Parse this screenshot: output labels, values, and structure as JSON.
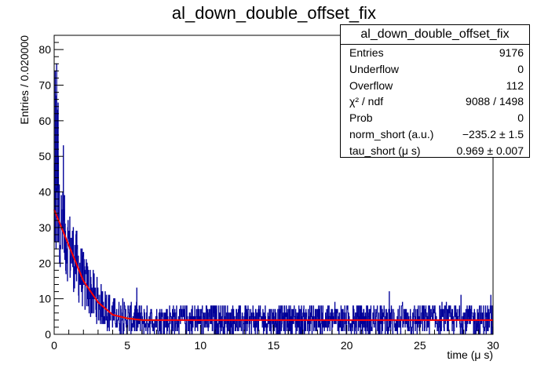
{
  "chart_data": {
    "type": "histogram",
    "title": "al_down_double_offset_fix",
    "xlabel": "time (μ s)",
    "ylabel": "Entries / 0.020000",
    "xlim": [
      0,
      30
    ],
    "ylim": [
      0,
      84
    ],
    "x_ticks": [
      "0",
      "5",
      "10",
      "15",
      "20",
      "25",
      "30"
    ],
    "y_ticks": [
      "0",
      "10",
      "20",
      "30",
      "40",
      "50",
      "60",
      "70",
      "80"
    ],
    "bin_width": 0.02,
    "fit": {
      "model": "exponential decay plus flat offset",
      "values_at_x": {
        "0": 35,
        "1": 25,
        "2": 15,
        "3": 9,
        "4": 5.5,
        "5": 4.5,
        "6": 4,
        "10": 4,
        "30": 4
      }
    },
    "histogram_color": "#000099",
    "fit_color": "#ff0000",
    "fit_secondary_color": "#00cc00",
    "grid": false
  },
  "stats_box": {
    "title": "al_down_double_offset_fix",
    "rows": [
      {
        "label": "Entries",
        "value": "9176"
      },
      {
        "label": "Underflow",
        "value": "0"
      },
      {
        "label": "Overflow",
        "value": "112"
      },
      {
        "label": "χ² / ndf",
        "value": "9088 / 1498"
      },
      {
        "label": "Prob",
        "value": "0"
      },
      {
        "label": "norm_short (a.u.)",
        "value": "−235.2 ± 1.5"
      },
      {
        "label": "tau_short (μ s)",
        "value": "0.969 ± 0.007"
      }
    ]
  }
}
